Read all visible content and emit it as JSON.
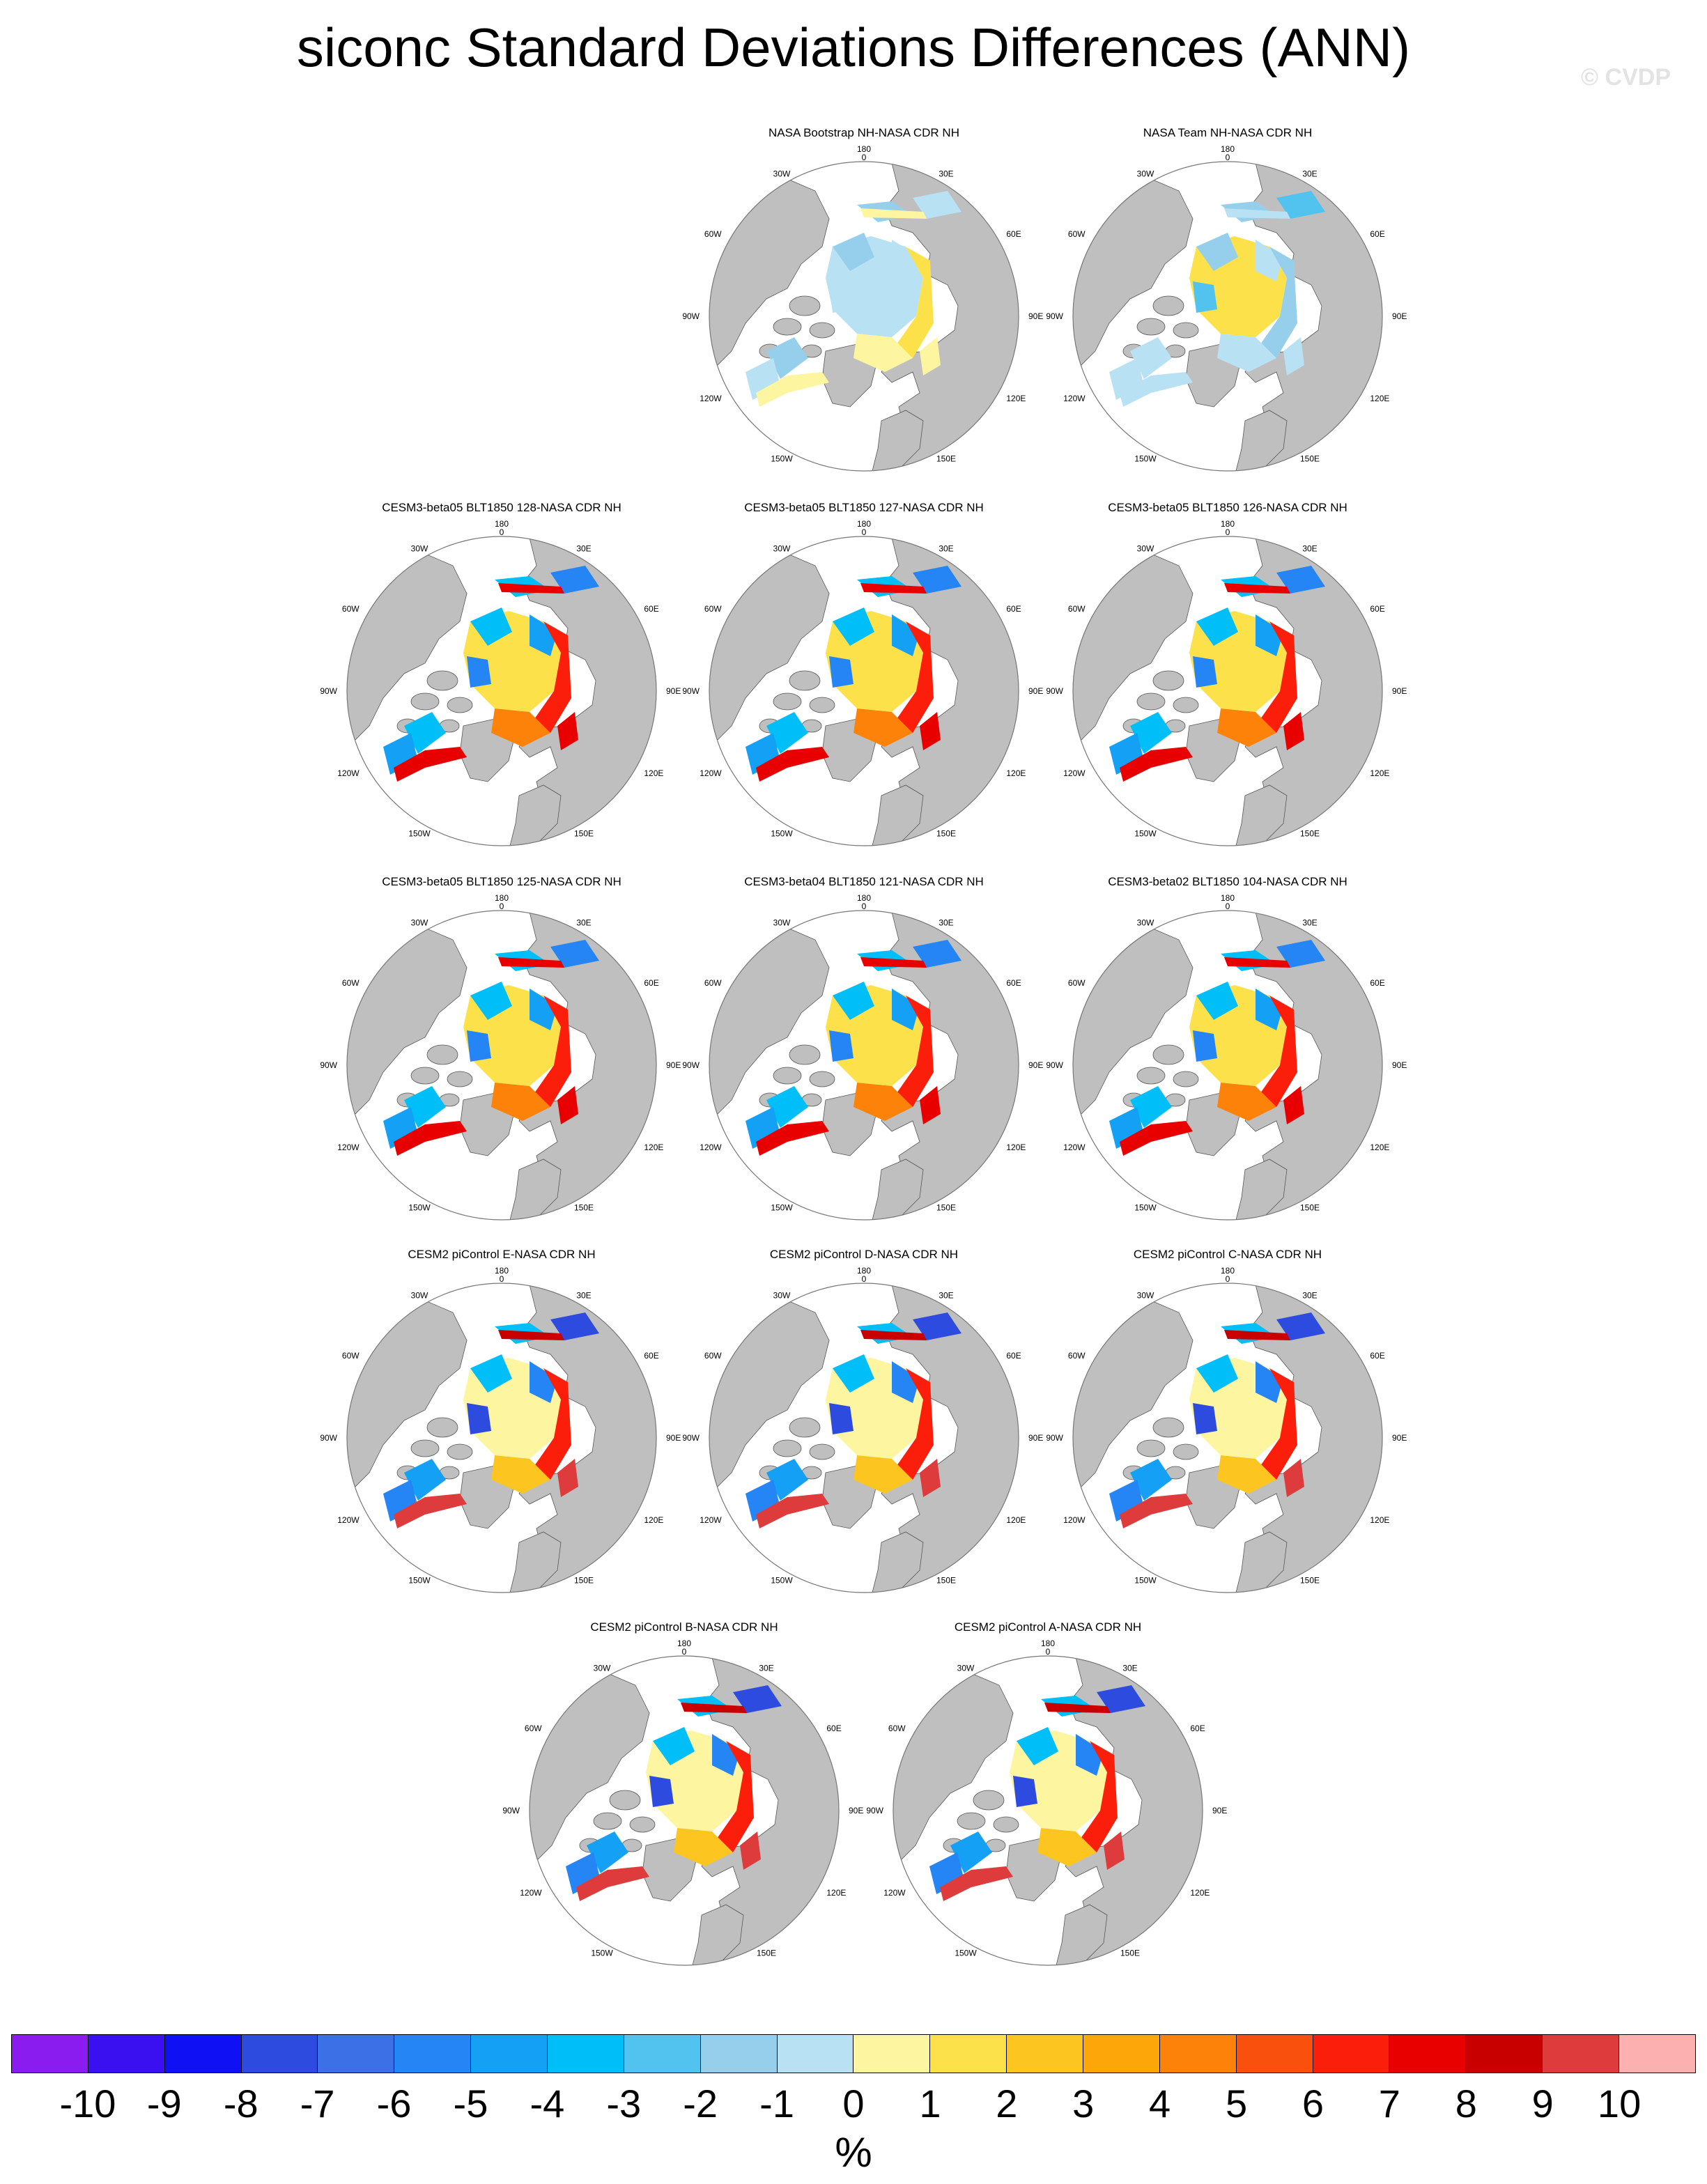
{
  "title": "siconc Standard Deviations Differences (ANN)",
  "watermark": "© CVDP",
  "map_labels": {
    "lon_top": "180",
    "lon_bottom": "0",
    "lon_150W": "150W",
    "lon_150E": "150E",
    "lon_120W": "120W",
    "lon_120E": "120E",
    "lon_90W": "90W",
    "lon_90E": "90E",
    "lon_60W": "60W",
    "lon_60E": "60E",
    "lon_30W": "30W",
    "lon_30E": "30E"
  },
  "panels": [
    {
      "title": "NASA Bootstrap NH-NASA CDR NH",
      "pattern": "bootstrap"
    },
    {
      "title": "NASA Team NH-NASA CDR NH",
      "pattern": "team"
    },
    {
      "title": "CESM3-beta05 BLT1850 128-NASA CDR NH",
      "pattern": "cesm3"
    },
    {
      "title": "CESM3-beta05 BLT1850 127-NASA CDR NH",
      "pattern": "cesm3"
    },
    {
      "title": "CESM3-beta05 BLT1850 126-NASA CDR NH",
      "pattern": "cesm3"
    },
    {
      "title": "CESM3-beta05 BLT1850 125-NASA CDR NH",
      "pattern": "cesm3"
    },
    {
      "title": "CESM3-beta04 BLT1850 121-NASA CDR NH",
      "pattern": "cesm3"
    },
    {
      "title": "CESM3-beta02 BLT1850 104-NASA CDR NH",
      "pattern": "cesm3"
    },
    {
      "title": "CESM2 piControl E-NASA CDR NH",
      "pattern": "cesm2"
    },
    {
      "title": "CESM2 piControl D-NASA CDR NH",
      "pattern": "cesm2"
    },
    {
      "title": "CESM2 piControl C-NASA CDR NH",
      "pattern": "cesm2"
    },
    {
      "title": "CESM2 piControl B-NASA CDR NH",
      "pattern": "cesm2"
    },
    {
      "title": "CESM2 piControl A-NASA CDR NH",
      "pattern": "cesm2"
    }
  ],
  "colorbar": {
    "colors": [
      "#8a1cf0",
      "#3a10f0",
      "#1010f5",
      "#2e4be0",
      "#3c70e6",
      "#2585f5",
      "#14a0f5",
      "#00bff8",
      "#52c2ef",
      "#96cfec",
      "#b8e1f3",
      "#fdf5a0",
      "#fde14a",
      "#fdc51f",
      "#fda60a",
      "#fd820a",
      "#f9500d",
      "#fb1e0a",
      "#e80000",
      "#c80000",
      "#de3c3c",
      "#fcb0b0"
    ],
    "labels": [
      "-10",
      "-9",
      "-8",
      "-7",
      "-6",
      "-5",
      "-4",
      "-3",
      "-2",
      "-1",
      "0",
      "1",
      "2",
      "3",
      "4",
      "5",
      "6",
      "7",
      "8",
      "9",
      "10"
    ],
    "unit": "%"
  }
}
